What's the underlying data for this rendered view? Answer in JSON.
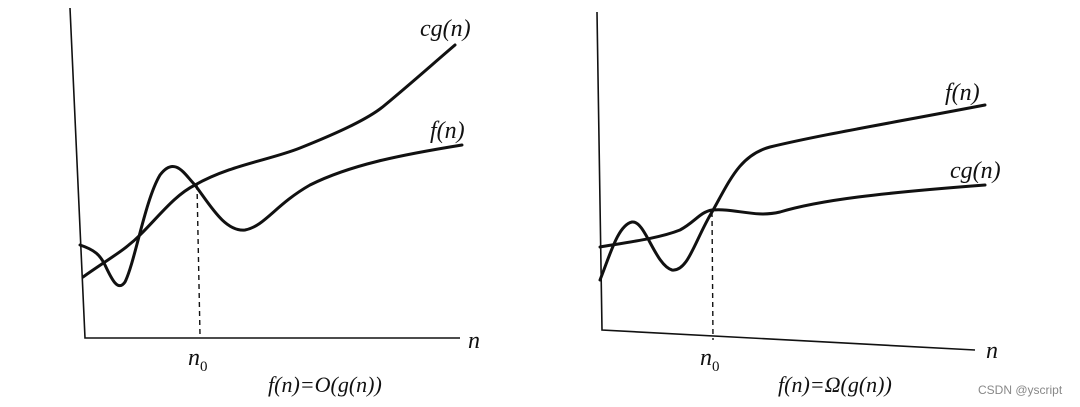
{
  "left": {
    "curve_labels": [
      "cg(n)",
      "f(n)"
    ],
    "axis_label": "n",
    "threshold_label": {
      "base": "n",
      "sub": "0"
    },
    "caption": "f(n)=O(g(n))"
  },
  "right": {
    "curve_labels": [
      "f(n)",
      "cg(n)"
    ],
    "axis_label": "n",
    "threshold_label": {
      "base": "n",
      "sub": "0"
    },
    "caption": "f(n)=Ω(g(n))"
  },
  "watermark": "CSDN @yscript"
}
